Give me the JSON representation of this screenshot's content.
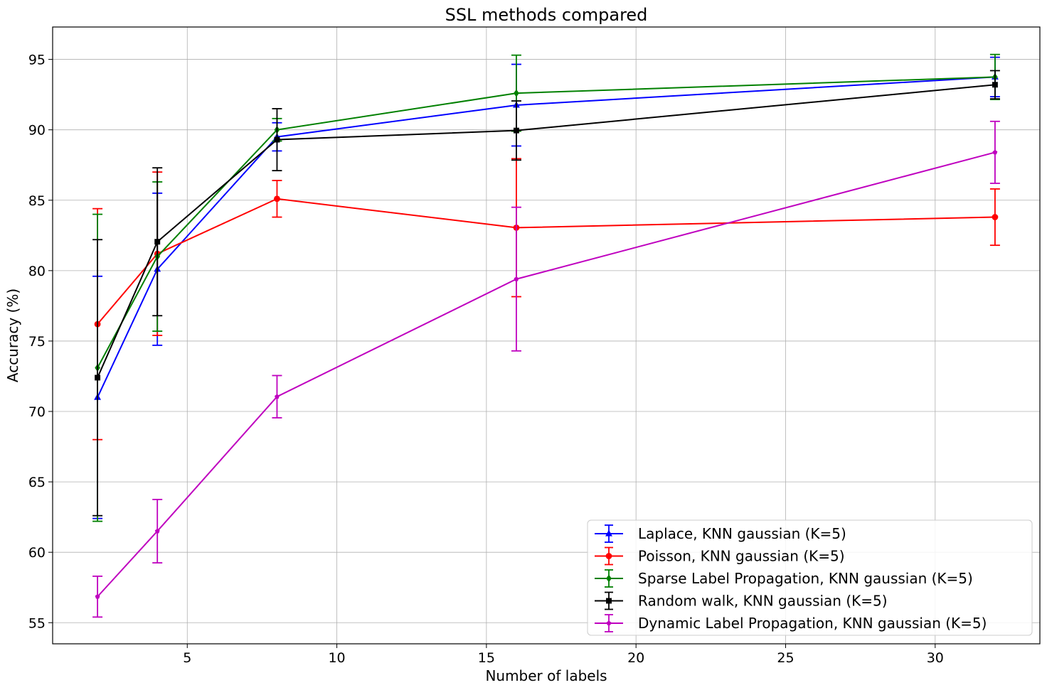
{
  "chart_data": {
    "type": "line",
    "title": "SSL methods compared",
    "xlabel": "Number of labels",
    "ylabel": "Accuracy (%)",
    "xlim": [
      0.5,
      33.5
    ],
    "ylim": [
      53.5,
      97.3
    ],
    "grid": true,
    "legend_position": "lower-right",
    "x": [
      2,
      4,
      8,
      16,
      32
    ],
    "xticks": [
      5,
      10,
      15,
      20,
      25,
      30
    ],
    "yticks": [
      55,
      60,
      65,
      70,
      75,
      80,
      85,
      90,
      95
    ],
    "series": [
      {
        "name": "Laplace, KNN gaussian (K=5)",
        "color": "#0000ff",
        "marker": "triangle",
        "values": [
          71.0,
          80.1,
          89.5,
          91.75,
          93.75
        ],
        "errors": [
          8.6,
          5.4,
          1.0,
          2.9,
          1.4
        ]
      },
      {
        "name": "Poisson, KNN gaussian (K=5)",
        "color": "#ff0000",
        "marker": "circle",
        "values": [
          76.2,
          81.2,
          85.1,
          83.05,
          83.8
        ],
        "errors": [
          8.2,
          5.8,
          1.3,
          4.9,
          2.0
        ]
      },
      {
        "name": "Sparse Label Propagation, KNN gaussian (K=5)",
        "color": "#008000",
        "marker": "diamond",
        "values": [
          73.1,
          81.0,
          90.0,
          92.6,
          93.75
        ],
        "errors": [
          10.9,
          5.3,
          0.8,
          2.7,
          1.6
        ]
      },
      {
        "name": "Random walk, KNN gaussian (K=5)",
        "color": "#000000",
        "marker": "square",
        "values": [
          72.4,
          82.05,
          89.3,
          89.95,
          93.2
        ],
        "errors": [
          9.8,
          5.25,
          2.2,
          2.1,
          1.0
        ]
      },
      {
        "name": "Dynamic Label Propagation, KNN gaussian (K=5)",
        "color": "#bf00bf",
        "marker": "pentagon",
        "values": [
          56.85,
          61.5,
          71.05,
          79.4,
          88.4
        ],
        "errors": [
          1.45,
          2.25,
          1.5,
          5.1,
          2.2
        ]
      }
    ]
  }
}
